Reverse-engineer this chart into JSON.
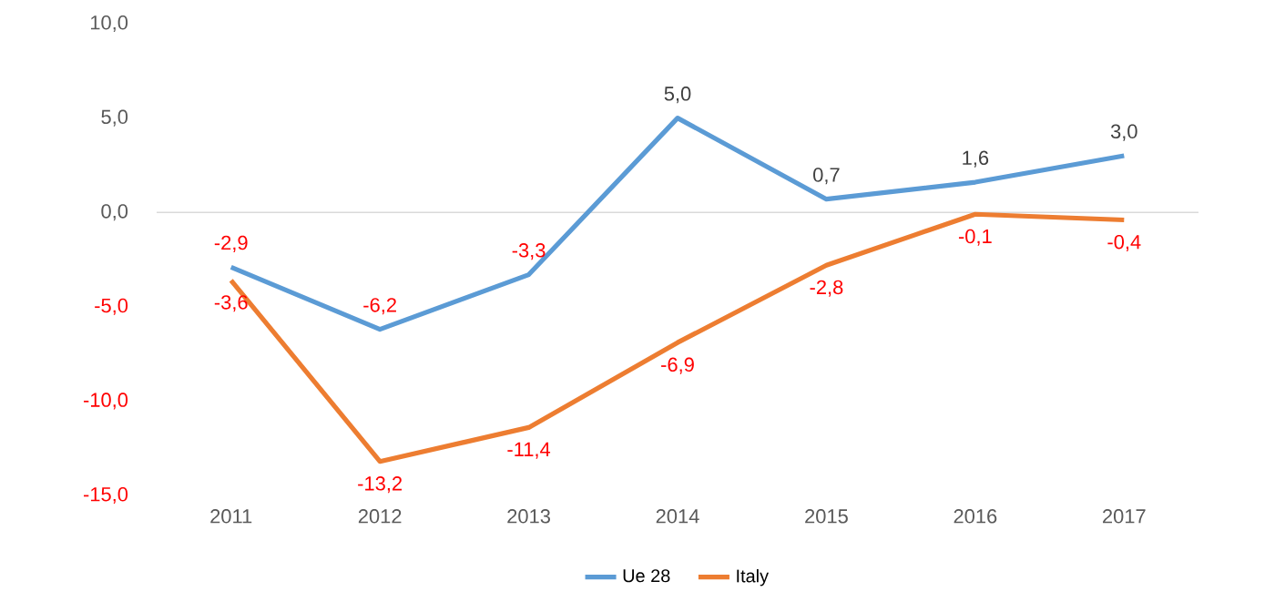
{
  "chart_data": {
    "type": "line",
    "categories": [
      "2011",
      "2012",
      "2013",
      "2014",
      "2015",
      "2016",
      "2017"
    ],
    "series": [
      {
        "name": "Ue 28",
        "color": "#5b9bd5",
        "values": [
          -2.9,
          -6.2,
          -3.3,
          5.0,
          0.7,
          1.6,
          3.0
        ],
        "value_labels": [
          "-2,9",
          "-6,2",
          "-3,3",
          "5,0",
          "0,7",
          "1,6",
          "3,0"
        ]
      },
      {
        "name": "Italy",
        "color": "#ed7d31",
        "values": [
          -3.6,
          -13.2,
          -11.4,
          -6.9,
          -2.8,
          -0.1,
          -0.4
        ],
        "value_labels": [
          "-3,6",
          "-13,2",
          "-11,4",
          "-6,9",
          "-2,8",
          "-0,1",
          "-0,4"
        ]
      }
    ],
    "ylim": [
      -15,
      10
    ],
    "yticks": [
      {
        "value": -15,
        "label": "-15,0"
      },
      {
        "value": -10,
        "label": "-10,0"
      },
      {
        "value": -5,
        "label": "-5,0"
      },
      {
        "value": 0,
        "label": "0,0"
      },
      {
        "value": 5,
        "label": "5,0"
      },
      {
        "value": 10,
        "label": "10,0"
      }
    ],
    "ref_lines": [
      {
        "axis": "y",
        "value": 0,
        "color": "#d9d9d9"
      }
    ],
    "legend": "bottom",
    "marker": "none",
    "line_style": "solid"
  }
}
